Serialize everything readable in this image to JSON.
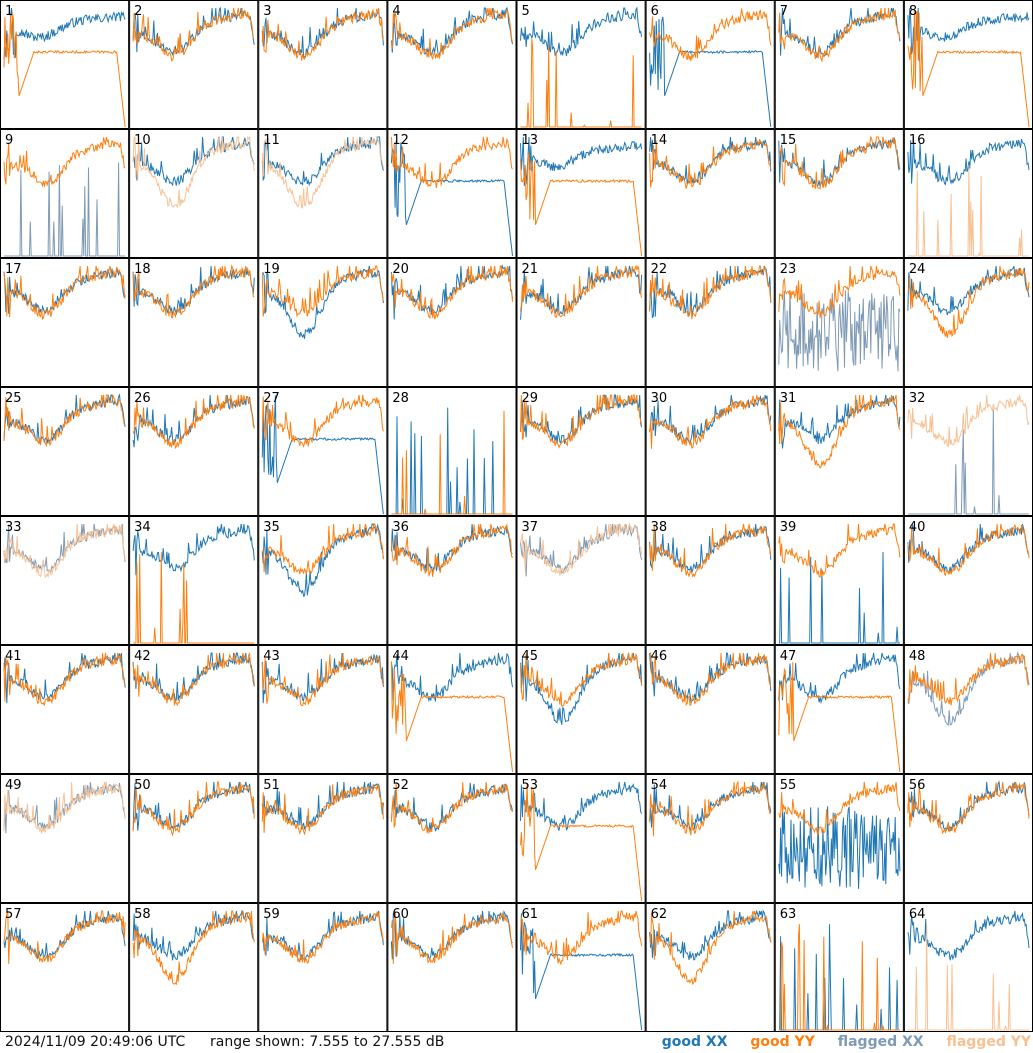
{
  "footer": {
    "timestamp": "2024/11/09 20:49:06 UTC",
    "range_text": "range shown: 7.555 to 27.555 dB"
  },
  "colors": {
    "good_xx": "#1f77b4",
    "good_yy": "#ff7f0e",
    "flagged_xx": "#7f9ab5",
    "flagged_yy": "#f8c193"
  },
  "chart_data": {
    "type": "line",
    "title": "",
    "xlabel": "",
    "ylabel": "",
    "ylim": [
      7.555,
      27.555
    ],
    "y_unit": "dB",
    "grid": "8x8 panels",
    "legend": "bottom-right",
    "legend_entries": [
      "good XX",
      "good YY",
      "flagged XX",
      "flagged YY"
    ],
    "panels": [
      {
        "id": "1",
        "xx": "good",
        "yy": "good",
        "xx_shape": "high",
        "yy_shape": "plateau"
      },
      {
        "id": "2",
        "xx": "good",
        "yy": "good",
        "xx_shape": "normal",
        "yy_shape": "normal"
      },
      {
        "id": "3",
        "xx": "good",
        "yy": "good",
        "xx_shape": "normal",
        "yy_shape": "normal"
      },
      {
        "id": "4",
        "xx": "good",
        "yy": "good",
        "xx_shape": "normal",
        "yy_shape": "normal"
      },
      {
        "id": "5",
        "xx": "good",
        "yy": "good",
        "xx_shape": "normal",
        "yy_shape": "dead"
      },
      {
        "id": "6",
        "xx": "good",
        "yy": "good",
        "xx_shape": "plateau",
        "yy_shape": "normal"
      },
      {
        "id": "7",
        "xx": "good",
        "yy": "good",
        "xx_shape": "normal",
        "yy_shape": "normal"
      },
      {
        "id": "8",
        "xx": "good",
        "yy": "good",
        "xx_shape": "high",
        "yy_shape": "plateau"
      },
      {
        "id": "9",
        "xx": "flagged",
        "yy": "good",
        "xx_shape": "dead",
        "yy_shape": "normal"
      },
      {
        "id": "10",
        "xx": "good",
        "yy": "flagged",
        "xx_shape": "normal",
        "yy_shape": "deep"
      },
      {
        "id": "11",
        "xx": "good",
        "yy": "flagged",
        "xx_shape": "normal",
        "yy_shape": "deep"
      },
      {
        "id": "12",
        "xx": "good",
        "yy": "good",
        "xx_shape": "plateau",
        "yy_shape": "normal"
      },
      {
        "id": "13",
        "xx": "good",
        "yy": "good",
        "xx_shape": "high",
        "yy_shape": "plateau"
      },
      {
        "id": "14",
        "xx": "good",
        "yy": "good",
        "xx_shape": "normal",
        "yy_shape": "normal"
      },
      {
        "id": "15",
        "xx": "good",
        "yy": "good",
        "xx_shape": "normal",
        "yy_shape": "normal"
      },
      {
        "id": "16",
        "xx": "good",
        "yy": "flagged",
        "xx_shape": "normal",
        "yy_shape": "dead"
      },
      {
        "id": "17",
        "xx": "good",
        "yy": "good",
        "xx_shape": "normal",
        "yy_shape": "normal"
      },
      {
        "id": "18",
        "xx": "good",
        "yy": "good",
        "xx_shape": "normal",
        "yy_shape": "normal"
      },
      {
        "id": "19",
        "xx": "good",
        "yy": "good",
        "xx_shape": "deep",
        "yy_shape": "normal"
      },
      {
        "id": "20",
        "xx": "good",
        "yy": "good",
        "xx_shape": "normal",
        "yy_shape": "normal"
      },
      {
        "id": "21",
        "xx": "good",
        "yy": "good",
        "xx_shape": "normal",
        "yy_shape": "normal"
      },
      {
        "id": "22",
        "xx": "good",
        "yy": "good",
        "xx_shape": "normal",
        "yy_shape": "normal"
      },
      {
        "id": "23",
        "xx": "flagged",
        "yy": "good",
        "xx_shape": "noisy",
        "yy_shape": "normal"
      },
      {
        "id": "24",
        "xx": "good",
        "yy": "good",
        "xx_shape": "normal",
        "yy_shape": "deep"
      },
      {
        "id": "25",
        "xx": "good",
        "yy": "good",
        "xx_shape": "normal",
        "yy_shape": "normal"
      },
      {
        "id": "26",
        "xx": "good",
        "yy": "good",
        "xx_shape": "normal",
        "yy_shape": "normal"
      },
      {
        "id": "27",
        "xx": "good",
        "yy": "good",
        "xx_shape": "plateau",
        "yy_shape": "normal"
      },
      {
        "id": "28",
        "xx": "good",
        "yy": "good",
        "xx_shape": "dead",
        "yy_shape": "dead"
      },
      {
        "id": "29",
        "xx": "good",
        "yy": "good",
        "xx_shape": "normal",
        "yy_shape": "normal"
      },
      {
        "id": "30",
        "xx": "good",
        "yy": "good",
        "xx_shape": "normal",
        "yy_shape": "normal"
      },
      {
        "id": "31",
        "xx": "good",
        "yy": "good",
        "xx_shape": "normal",
        "yy_shape": "deep"
      },
      {
        "id": "32",
        "xx": "flagged",
        "yy": "flagged",
        "xx_shape": "dead",
        "yy_shape": "normal"
      },
      {
        "id": "33",
        "xx": "flagged",
        "yy": "flagged",
        "xx_shape": "normal",
        "yy_shape": "normal"
      },
      {
        "id": "34",
        "xx": "good",
        "yy": "good",
        "xx_shape": "normal",
        "yy_shape": "dead"
      },
      {
        "id": "35",
        "xx": "good",
        "yy": "good",
        "xx_shape": "deep",
        "yy_shape": "normal"
      },
      {
        "id": "36",
        "xx": "good",
        "yy": "good",
        "xx_shape": "normal",
        "yy_shape": "normal"
      },
      {
        "id": "37",
        "xx": "flagged",
        "yy": "flagged",
        "xx_shape": "normal",
        "yy_shape": "normal"
      },
      {
        "id": "38",
        "xx": "good",
        "yy": "good",
        "xx_shape": "normal",
        "yy_shape": "normal"
      },
      {
        "id": "39",
        "xx": "good",
        "yy": "good",
        "xx_shape": "dead",
        "yy_shape": "normal"
      },
      {
        "id": "40",
        "xx": "good",
        "yy": "good",
        "xx_shape": "normal",
        "yy_shape": "normal"
      },
      {
        "id": "41",
        "xx": "good",
        "yy": "good",
        "xx_shape": "normal",
        "yy_shape": "normal"
      },
      {
        "id": "42",
        "xx": "good",
        "yy": "good",
        "xx_shape": "normal",
        "yy_shape": "normal"
      },
      {
        "id": "43",
        "xx": "good",
        "yy": "good",
        "xx_shape": "normal",
        "yy_shape": "normal"
      },
      {
        "id": "44",
        "xx": "good",
        "yy": "good",
        "xx_shape": "normal",
        "yy_shape": "plateau"
      },
      {
        "id": "45",
        "xx": "good",
        "yy": "good",
        "xx_shape": "deep",
        "yy_shape": "normal"
      },
      {
        "id": "46",
        "xx": "good",
        "yy": "good",
        "xx_shape": "normal",
        "yy_shape": "normal"
      },
      {
        "id": "47",
        "xx": "good",
        "yy": "good",
        "xx_shape": "normal",
        "yy_shape": "plateau"
      },
      {
        "id": "48",
        "xx": "flagged",
        "yy": "good",
        "xx_shape": "deep",
        "yy_shape": "normal"
      },
      {
        "id": "49",
        "xx": "flagged",
        "yy": "flagged",
        "xx_shape": "normal",
        "yy_shape": "normal"
      },
      {
        "id": "50",
        "xx": "good",
        "yy": "good",
        "xx_shape": "normal",
        "yy_shape": "normal"
      },
      {
        "id": "51",
        "xx": "good",
        "yy": "good",
        "xx_shape": "normal",
        "yy_shape": "normal"
      },
      {
        "id": "52",
        "xx": "good",
        "yy": "good",
        "xx_shape": "normal",
        "yy_shape": "normal"
      },
      {
        "id": "53",
        "xx": "good",
        "yy": "good",
        "xx_shape": "normal",
        "yy_shape": "plateau"
      },
      {
        "id": "54",
        "xx": "good",
        "yy": "good",
        "xx_shape": "normal",
        "yy_shape": "normal"
      },
      {
        "id": "55",
        "xx": "good",
        "yy": "good",
        "xx_shape": "noisy",
        "yy_shape": "normal"
      },
      {
        "id": "56",
        "xx": "good",
        "yy": "good",
        "xx_shape": "normal",
        "yy_shape": "normal"
      },
      {
        "id": "57",
        "xx": "good",
        "yy": "good",
        "xx_shape": "normal",
        "yy_shape": "normal"
      },
      {
        "id": "58",
        "xx": "good",
        "yy": "good",
        "xx_shape": "normal",
        "yy_shape": "deep"
      },
      {
        "id": "59",
        "xx": "good",
        "yy": "good",
        "xx_shape": "normal",
        "yy_shape": "normal"
      },
      {
        "id": "60",
        "xx": "good",
        "yy": "good",
        "xx_shape": "normal",
        "yy_shape": "normal"
      },
      {
        "id": "61",
        "xx": "good",
        "yy": "good",
        "xx_shape": "plateau",
        "yy_shape": "normal"
      },
      {
        "id": "62",
        "xx": "good",
        "yy": "good",
        "xx_shape": "normal",
        "yy_shape": "deep"
      },
      {
        "id": "63",
        "xx": "good",
        "yy": "good",
        "xx_shape": "dead",
        "yy_shape": "dead"
      },
      {
        "id": "64",
        "xx": "good",
        "yy": "flagged",
        "xx_shape": "normal",
        "yy_shape": "dead"
      }
    ]
  }
}
